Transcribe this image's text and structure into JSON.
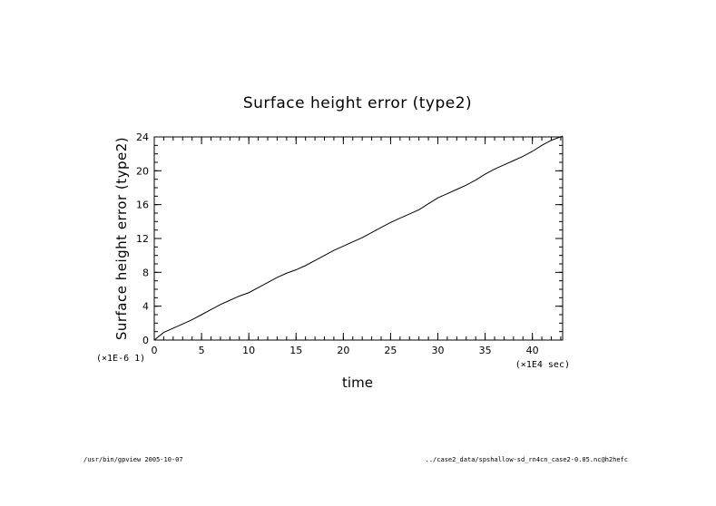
{
  "chart_data": {
    "type": "line",
    "title": "Surface height error (type2)",
    "xlabel": "time",
    "ylabel": "Surface height error (type2)",
    "x_scale_label": "(×1E4 sec)",
    "y_scale_label": "(×1E-6 1)",
    "xlim": [
      0,
      43.2
    ],
    "ylim": [
      0,
      24
    ],
    "x_major_ticks": [
      0,
      5,
      10,
      15,
      20,
      25,
      30,
      35,
      40
    ],
    "y_major_ticks": [
      0,
      4,
      8,
      12,
      16,
      20,
      24
    ],
    "x_minor_step": 1,
    "y_minor_step": 1,
    "grid": false,
    "series": [
      {
        "x": [
          0,
          1,
          2,
          3,
          4,
          5,
          6,
          7,
          8,
          9,
          10,
          11,
          12,
          13,
          14,
          15,
          16,
          17,
          18,
          19,
          20,
          21,
          22,
          23,
          24,
          25,
          26,
          27,
          28,
          29,
          30,
          31,
          32,
          33,
          34,
          35,
          36,
          37,
          38,
          39,
          40,
          41,
          42,
          43.2
        ],
        "y": [
          0,
          0.9,
          1.4,
          1.9,
          2.4,
          3.0,
          3.6,
          4.2,
          4.7,
          5.2,
          5.6,
          6.2,
          6.8,
          7.4,
          7.9,
          8.3,
          8.8,
          9.4,
          10.0,
          10.6,
          11.1,
          11.6,
          12.1,
          12.7,
          13.3,
          13.9,
          14.4,
          14.9,
          15.4,
          16.1,
          16.8,
          17.3,
          17.8,
          18.3,
          18.9,
          19.6,
          20.2,
          20.7,
          21.2,
          21.7,
          22.3,
          23.0,
          23.6,
          24.1
        ]
      }
    ]
  },
  "footer": {
    "left": "/usr/bin/gpview  2005-10-07",
    "right": "../case2_data/spshallow-sd_rn4cn_case2-0.05.nc@h2hefc"
  }
}
